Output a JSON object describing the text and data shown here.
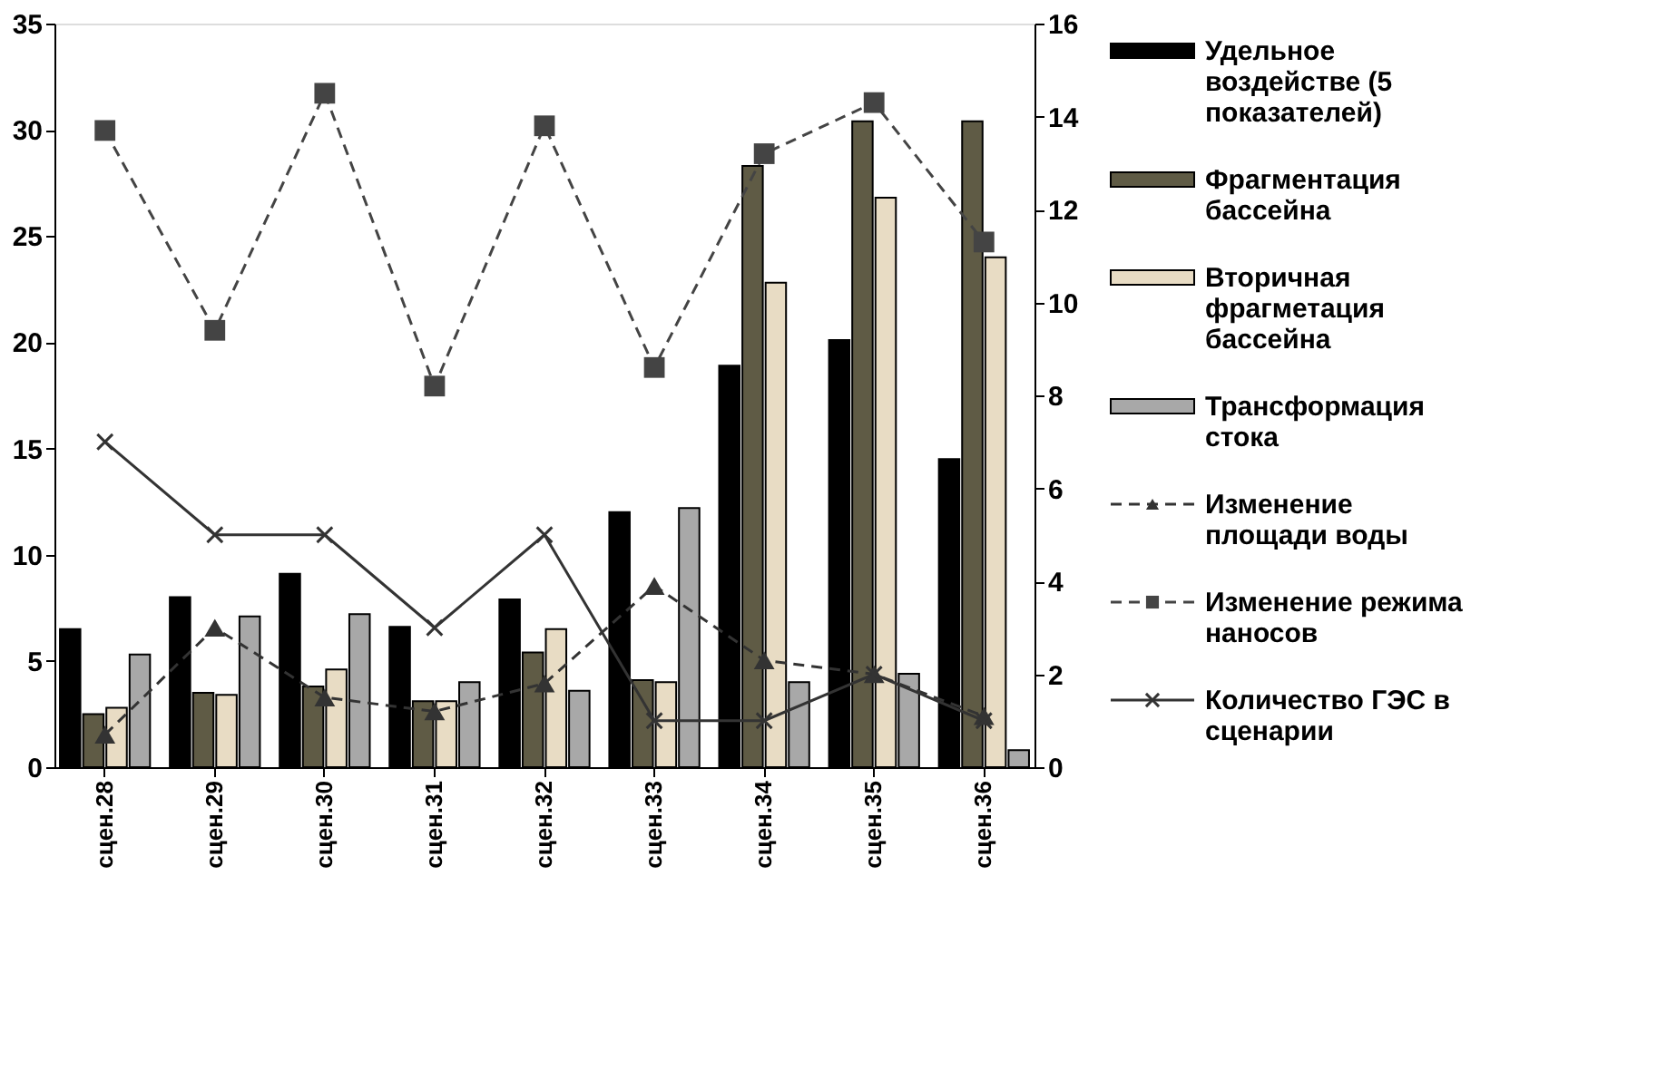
{
  "chart_data": {
    "type": "bar",
    "categories": [
      "сцен.28",
      "сцен.29",
      "сцен.30",
      "сцен.31",
      "сцен.32",
      "сцен.33",
      "сцен.34",
      "сцен.35",
      "сцен.36"
    ],
    "series": [
      {
        "name": "Удельное воздействе (5 показателей)",
        "color": "#000000",
        "values": [
          6.5,
          8.0,
          9.1,
          6.6,
          7.9,
          12.0,
          18.9,
          20.1,
          14.5
        ]
      },
      {
        "name": "Фрагментация бассейна",
        "color": "#5f5b45",
        "values": [
          2.5,
          3.5,
          3.8,
          3.1,
          5.4,
          4.1,
          28.3,
          30.4,
          30.4
        ]
      },
      {
        "name": "Вторичная фрагметация бассейна",
        "color": "#e8dcc4",
        "values": [
          2.8,
          3.4,
          4.6,
          3.1,
          6.5,
          4.0,
          22.8,
          26.8,
          24.0
        ]
      },
      {
        "name": "Трансформация стока",
        "color": "#a8a8a8",
        "values": [
          5.3,
          7.1,
          7.2,
          4.0,
          3.6,
          12.2,
          4.0,
          4.4,
          0.8
        ]
      },
      {
        "name": "Изменение площади воды",
        "type": "line",
        "axis": "y2",
        "color": "#333333",
        "marker": "triangle",
        "line_style": "dashed",
        "values": [
          0.7,
          3.0,
          1.5,
          1.2,
          1.8,
          3.9,
          2.3,
          2.0,
          1.1
        ]
      },
      {
        "name": "Изменение режима наносов",
        "type": "line",
        "axis": "y2",
        "color": "#444444",
        "marker": "square",
        "line_style": "dashed",
        "values": [
          13.7,
          9.4,
          14.5,
          8.2,
          13.8,
          8.6,
          13.2,
          14.3,
          11.3
        ]
      },
      {
        "name": "Количество ГЭС в сценарии",
        "type": "line",
        "axis": "y2",
        "color": "#333333",
        "marker": "cross",
        "line_style": "solid",
        "values": [
          7,
          5,
          5,
          3,
          5,
          1,
          1,
          2,
          1
        ]
      }
    ],
    "ylim": [
      0,
      35
    ],
    "yticks": [
      0,
      5,
      10,
      15,
      20,
      25,
      30,
      35
    ],
    "y2lim": [
      0,
      16
    ],
    "y2ticks": [
      0,
      2,
      4,
      6,
      8,
      10,
      12,
      14,
      16
    ],
    "legend": "right",
    "grid": false
  }
}
